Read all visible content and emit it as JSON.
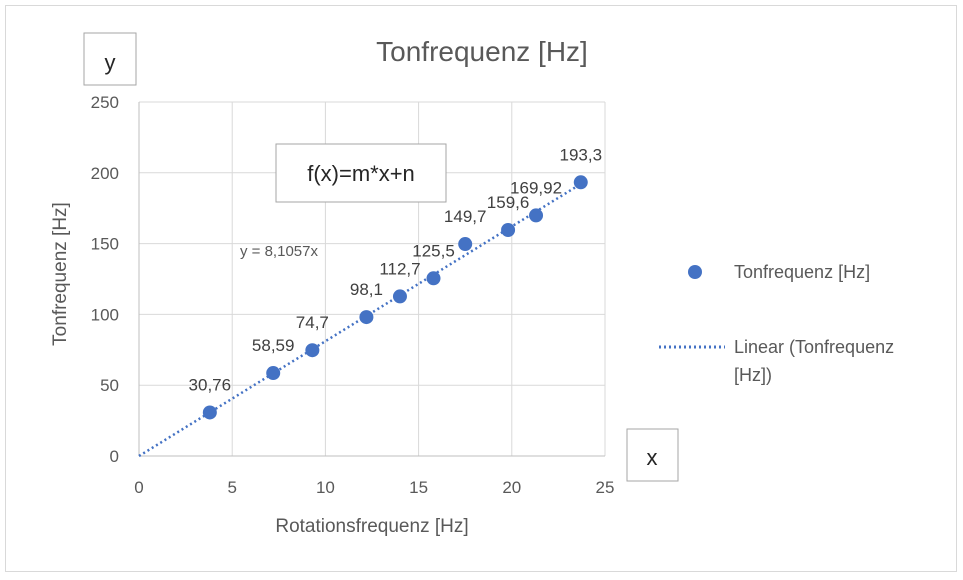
{
  "chart_data": {
    "type": "scatter",
    "title": "Tonfrequenz [Hz]",
    "xlabel": "Rotationsfrequenz [Hz]",
    "ylabel": "Tonfrequenz [Hz]",
    "xlim": [
      0,
      25
    ],
    "ylim": [
      0,
      250
    ],
    "xticks": [
      "0",
      "5",
      "10",
      "15",
      "20",
      "25"
    ],
    "yticks": [
      "0",
      "50",
      "100",
      "150",
      "200",
      "250"
    ],
    "grid": true,
    "legend_position": "right",
    "series": [
      {
        "name": "Tonfrequenz [Hz]",
        "color": "#4472c4",
        "points": [
          {
            "x": 3.8,
            "y": 30.76,
            "label": "30,76"
          },
          {
            "x": 7.2,
            "y": 58.59,
            "label": "58,59"
          },
          {
            "x": 9.3,
            "y": 74.7,
            "label": "74,7"
          },
          {
            "x": 12.2,
            "y": 98.1,
            "label": "98,1"
          },
          {
            "x": 14.0,
            "y": 112.7,
            "label": "112,7"
          },
          {
            "x": 15.8,
            "y": 125.5,
            "label": "125,5"
          },
          {
            "x": 17.5,
            "y": 149.7,
            "label": "149,7"
          },
          {
            "x": 19.8,
            "y": 159.6,
            "label": "159,6"
          },
          {
            "x": 21.3,
            "y": 169.92,
            "label": "169,92"
          },
          {
            "x": 23.7,
            "y": 193.3,
            "label": "193,3"
          }
        ]
      }
    ],
    "trendline": {
      "name": "Linear (Tonfrequenz [Hz])",
      "equation": "y = 8,1057x",
      "slope": 8.1057,
      "intercept": 0,
      "x_range": [
        0,
        23.7
      ],
      "style": "dotted",
      "color": "#4472c4"
    },
    "annotations": {
      "y_box": "y",
      "x_box": "x",
      "formula_box": "f(x)=m*x+n"
    },
    "legend": {
      "scatter_label": "Tonfrequenz [Hz]",
      "trend_label_line1": "Linear (Tonfrequenz",
      "trend_label_line2": "[Hz])"
    }
  }
}
